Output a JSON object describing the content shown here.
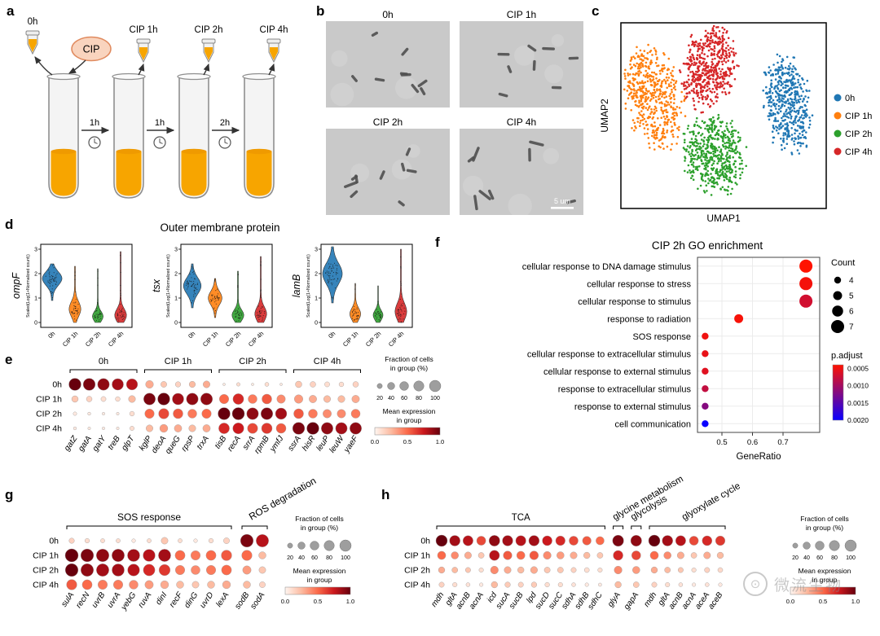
{
  "panel_letters": {
    "a": "a",
    "b": "b",
    "c": "c",
    "d": "d",
    "e": "e",
    "f": "f",
    "g": "g",
    "h": "h"
  },
  "schematic": {
    "sample_labels": [
      "0h",
      "CIP 1h",
      "CIP 2h",
      "CIP 4h"
    ],
    "cip_label": "CIP",
    "interval_labels": [
      "1h",
      "1h",
      "2h"
    ]
  },
  "micrographs": {
    "labels": [
      "0h",
      "CIP 1h",
      "CIP 2h",
      "CIP 4h"
    ],
    "scale_bar": "5 um",
    "counts": [
      9,
      8,
      9,
      8
    ],
    "len": [
      [
        9,
        14
      ],
      [
        10,
        16
      ],
      [
        9,
        18
      ],
      [
        9,
        20
      ]
    ]
  },
  "watermark": {
    "text": "微流生物"
  },
  "chart_data": [
    {
      "id": "umap",
      "type": "scatter",
      "xlabel": "UMAP1",
      "ylabel": "UMAP2",
      "legend": [
        {
          "label": "0h",
          "color": "#2077b4"
        },
        {
          "label": "CIP 1h",
          "color": "#ff7f0e"
        },
        {
          "label": "CIP 2h",
          "color": "#2ca02c"
        },
        {
          "label": "CIP 4h",
          "color": "#d62728"
        }
      ],
      "clusters": [
        {
          "label": "CIP 1h",
          "color": "#ff7f0e",
          "cx": 0.16,
          "cy": 0.4,
          "rx": 0.14,
          "ry": 0.28,
          "rot": -12,
          "n": 520
        },
        {
          "label": "CIP 4h",
          "color": "#d62728",
          "cx": 0.43,
          "cy": 0.24,
          "rx": 0.13,
          "ry": 0.22,
          "rot": 8,
          "n": 520
        },
        {
          "label": "CIP 2h",
          "color": "#2ca02c",
          "cx": 0.45,
          "cy": 0.71,
          "rx": 0.15,
          "ry": 0.21,
          "rot": -8,
          "n": 520
        },
        {
          "label": "0h",
          "color": "#2077b4",
          "cx": 0.81,
          "cy": 0.44,
          "rx": 0.11,
          "ry": 0.26,
          "rot": -6,
          "n": 470
        }
      ]
    },
    {
      "id": "violins",
      "type": "violin",
      "title": "Outer membrane protein",
      "ylabel": "Scaled(Log(1+Normalized count))",
      "yticks": [
        0,
        1,
        2,
        3
      ],
      "categories": [
        "0h",
        "CIP 1h",
        "CIP 2h",
        "CIP 4h"
      ],
      "category_colors": [
        "#2077b4",
        "#ff7f0e",
        "#2ca02c",
        "#d62728"
      ],
      "genes": [
        {
          "name": "ompF",
          "violins": [
            {
              "peak": 1.8,
              "sd": 0.28,
              "min": 0.9,
              "max": 2.4,
              "w": 1.0,
              "dots": 50
            },
            {
              "peak": 0.55,
              "sd": 0.3,
              "min": 0.0,
              "max": 2.3,
              "w": 0.6,
              "dots": 40
            },
            {
              "peak": 0.25,
              "sd": 0.2,
              "min": 0.0,
              "max": 2.2,
              "w": 0.55,
              "dots": 35
            },
            {
              "peak": 0.3,
              "sd": 0.25,
              "min": 0.0,
              "max": 2.9,
              "w": 0.6,
              "dots": 40
            }
          ]
        },
        {
          "name": "tsx",
          "violins": [
            {
              "peak": 1.5,
              "sd": 0.33,
              "min": 0.6,
              "max": 2.4,
              "w": 0.9,
              "dots": 50
            },
            {
              "peak": 1.0,
              "sd": 0.28,
              "min": 0.2,
              "max": 1.8,
              "w": 0.7,
              "dots": 40
            },
            {
              "peak": 0.3,
              "sd": 0.22,
              "min": 0.0,
              "max": 2.1,
              "w": 0.6,
              "dots": 35
            },
            {
              "peak": 0.35,
              "sd": 0.28,
              "min": 0.0,
              "max": 2.7,
              "w": 0.6,
              "dots": 40
            }
          ]
        },
        {
          "name": "lamB",
          "violins": [
            {
              "peak": 2.0,
              "sd": 0.42,
              "min": 0.8,
              "max": 3.1,
              "w": 1.0,
              "dots": 55
            },
            {
              "peak": 0.35,
              "sd": 0.24,
              "min": 0.0,
              "max": 1.6,
              "w": 0.55,
              "dots": 35
            },
            {
              "peak": 0.3,
              "sd": 0.2,
              "min": 0.0,
              "max": 1.5,
              "w": 0.5,
              "dots": 30
            },
            {
              "peak": 0.45,
              "sd": 0.33,
              "min": 0.0,
              "max": 3.0,
              "w": 0.6,
              "dots": 40
            }
          ]
        }
      ]
    },
    {
      "id": "marker_dotplot",
      "type": "dotplot",
      "rows": [
        "0h",
        "CIP 1h",
        "CIP 2h",
        "CIP 4h"
      ],
      "groups": [
        {
          "label": "0h",
          "rotate": false,
          "genes": [
            "gatZ",
            "gatA",
            "gatY",
            "treB",
            "glpT"
          ]
        },
        {
          "label": "CIP 1h",
          "rotate": false,
          "genes": [
            "kglP",
            "deoA",
            "queG",
            "rpsP",
            "trxA"
          ]
        },
        {
          "label": "CIP 2h",
          "rotate": false,
          "genes": [
            "tisB",
            "recA",
            "srrA",
            "rpmB",
            "ymfJ"
          ]
        },
        {
          "label": "CIP 4h",
          "rotate": false,
          "genes": [
            "ssrA",
            "hisR",
            "leuP",
            "leuW",
            "yaeF"
          ]
        }
      ],
      "sizes": [
        [
          92,
          90,
          86,
          82,
          78,
          38,
          22,
          18,
          24,
          30,
          4,
          8,
          4,
          10,
          4,
          26,
          20,
          16,
          14,
          20
        ],
        [
          26,
          20,
          16,
          14,
          30,
          86,
          92,
          82,
          86,
          88,
          55,
          72,
          50,
          60,
          45,
          46,
          36,
          30,
          30,
          36
        ],
        [
          8,
          6,
          5,
          5,
          14,
          55,
          66,
          60,
          50,
          55,
          92,
          94,
          86,
          88,
          80,
          60,
          50,
          45,
          45,
          50
        ],
        [
          6,
          5,
          5,
          5,
          12,
          30,
          40,
          35,
          30,
          35,
          72,
          76,
          65,
          70,
          60,
          90,
          92,
          86,
          84,
          86
        ]
      ],
      "values": [
        [
          1.0,
          0.95,
          0.9,
          0.85,
          0.8,
          0.3,
          0.2,
          0.15,
          0.25,
          0.3,
          0.05,
          0.1,
          0.05,
          0.1,
          0.05,
          0.2,
          0.15,
          0.1,
          0.1,
          0.15
        ],
        [
          0.2,
          0.15,
          0.1,
          0.1,
          0.25,
          0.95,
          1.0,
          0.85,
          0.9,
          0.9,
          0.5,
          0.7,
          0.45,
          0.55,
          0.4,
          0.35,
          0.3,
          0.25,
          0.25,
          0.3
        ],
        [
          0.05,
          0.05,
          0.05,
          0.05,
          0.1,
          0.5,
          0.6,
          0.55,
          0.45,
          0.5,
          1.0,
          1.0,
          0.9,
          0.95,
          0.85,
          0.55,
          0.45,
          0.4,
          0.4,
          0.45
        ],
        [
          0.05,
          0.05,
          0.05,
          0.05,
          0.1,
          0.25,
          0.35,
          0.3,
          0.25,
          0.3,
          0.7,
          0.75,
          0.6,
          0.65,
          0.55,
          0.95,
          1.0,
          0.9,
          0.85,
          0.9
        ]
      ],
      "legend": {
        "fraction_title": [
          "Fraction of cells",
          "in group (%)"
        ],
        "fraction_ticks": [
          20,
          40,
          60,
          80,
          100
        ],
        "expression_title": [
          "Mean expression",
          "in group"
        ],
        "expression_ticks": [
          "0.0",
          "0.5",
          "1.0"
        ]
      }
    },
    {
      "id": "go_enrichment",
      "type": "dot_enrichment",
      "title": "CIP 2h GO enrichment",
      "xlabel": "GeneRatio",
      "xticks": [
        0.5,
        0.6,
        0.7
      ],
      "xlim": [
        0.42,
        0.82
      ],
      "terms": [
        {
          "label": "cellular response to DNA damage stimulus",
          "ratio": 0.775,
          "count": 7,
          "padj": 0.0004
        },
        {
          "label": "cellular response to stress",
          "ratio": 0.775,
          "count": 7,
          "padj": 0.00047
        },
        {
          "label": "cellular response to stimulus",
          "ratio": 0.775,
          "count": 7,
          "padj": 0.0007
        },
        {
          "label": "response to radiation",
          "ratio": 0.555,
          "count": 5,
          "padj": 0.00045
        },
        {
          "label": "SOS response",
          "ratio": 0.445,
          "count": 4,
          "padj": 0.0005
        },
        {
          "label": "cellular response to extracellular stimulus",
          "ratio": 0.445,
          "count": 4,
          "padj": 0.00055
        },
        {
          "label": "cellular response to external stimulus",
          "ratio": 0.445,
          "count": 4,
          "padj": 0.0006
        },
        {
          "label": "response to extracellular stimulus",
          "ratio": 0.445,
          "count": 4,
          "padj": 0.0008
        },
        {
          "label": "response to external stimulus",
          "ratio": 0.445,
          "count": 4,
          "padj": 0.0012
        },
        {
          "label": "cell communication",
          "ratio": 0.445,
          "count": 4,
          "padj": 0.002
        }
      ],
      "legend": {
        "count_title": "Count",
        "count_ticks": [
          4,
          5,
          6,
          7
        ],
        "padj_title": "p.adjust",
        "padj_ticks": [
          "0.0005",
          "0.0010",
          "0.0015",
          "0.0020"
        ],
        "padj_range": [
          0.0004,
          0.002
        ]
      }
    },
    {
      "id": "sos_dotplot",
      "type": "dotplot",
      "rows": [
        "0h",
        "CIP 1h",
        "CIP 2h",
        "CIP 4h"
      ],
      "groups": [
        {
          "label": "SOS response",
          "rotate": false,
          "genes": [
            "sulA",
            "recN",
            "uvrB",
            "uvrA",
            "yebG",
            "ruvA",
            "dinI",
            "recF",
            "dinG",
            "uvrD",
            "lexA"
          ]
        },
        {
          "label": "ROS degradation",
          "rotate": true,
          "genes": [
            "sodB",
            "sodA"
          ]
        }
      ],
      "sizes": [
        [
          16,
          12,
          10,
          10,
          8,
          10,
          26,
          10,
          8,
          12,
          20,
          92,
          88
        ],
        [
          96,
          92,
          90,
          88,
          85,
          82,
          86,
          56,
          50,
          56,
          62,
          60,
          30
        ],
        [
          92,
          90,
          88,
          85,
          80,
          76,
          70,
          50,
          46,
          50,
          56,
          40,
          26
        ],
        [
          60,
          55,
          50,
          50,
          45,
          40,
          36,
          30,
          26,
          30,
          36,
          30,
          20
        ]
      ],
      "values": [
        [
          0.15,
          0.1,
          0.1,
          0.1,
          0.05,
          0.1,
          0.2,
          0.1,
          0.05,
          0.1,
          0.15,
          0.95,
          0.8
        ],
        [
          1.0,
          0.95,
          0.9,
          0.9,
          0.85,
          0.8,
          0.85,
          0.5,
          0.45,
          0.5,
          0.55,
          0.5,
          0.25
        ],
        [
          1.0,
          0.9,
          0.85,
          0.85,
          0.8,
          0.7,
          0.65,
          0.45,
          0.4,
          0.45,
          0.5,
          0.35,
          0.2
        ],
        [
          0.55,
          0.5,
          0.45,
          0.45,
          0.4,
          0.35,
          0.3,
          0.25,
          0.2,
          0.25,
          0.3,
          0.25,
          0.15
        ]
      ],
      "legend": {
        "fraction_title": [
          "Fraction of cells",
          "in group (%)"
        ],
        "fraction_ticks": [
          20,
          40,
          60,
          80,
          100
        ],
        "expression_title": [
          "Mean expression",
          "in group"
        ],
        "expression_ticks": [
          "0.0",
          "0.5",
          "1.0"
        ]
      }
    },
    {
      "id": "tca_dotplot",
      "type": "dotplot",
      "rows": [
        "0h",
        "CIP 1h",
        "CIP 2h",
        "CIP 4h"
      ],
      "groups": [
        {
          "label": "TCA",
          "rotate": false,
          "genes": [
            "mdh",
            "gltA",
            "acnB",
            "acnA",
            "icd",
            "sucA",
            "sucB",
            "lpd",
            "sucD",
            "sucC",
            "sdhA",
            "sdhB",
            "sdhC"
          ]
        },
        {
          "label": "glycine metabolism",
          "rotate": true,
          "genes": [
            "glyA"
          ]
        },
        {
          "label": "glycolysis",
          "rotate": true,
          "genes": [
            "gapA"
          ]
        },
        {
          "label": "glyoxylate cycle",
          "rotate": true,
          "genes": [
            "mdh",
            "gltA",
            "acnB",
            "acnA",
            "aceA",
            "aceB"
          ]
        }
      ],
      "sizes": [
        [
          95,
          82,
          75,
          60,
          85,
          80,
          76,
          80,
          70,
          66,
          60,
          55,
          50,
          90,
          88,
          95,
          82,
          75,
          60,
          70,
          66
        ],
        [
          50,
          40,
          35,
          25,
          75,
          55,
          50,
          56,
          45,
          40,
          35,
          30,
          25,
          70,
          60,
          50,
          40,
          35,
          25,
          35,
          30
        ],
        [
          30,
          25,
          20,
          15,
          45,
          35,
          30,
          36,
          26,
          25,
          20,
          18,
          15,
          45,
          40,
          30,
          25,
          20,
          15,
          20,
          18
        ],
        [
          20,
          15,
          12,
          10,
          30,
          22,
          20,
          22,
          16,
          15,
          12,
          10,
          8,
          30,
          25,
          20,
          15,
          12,
          10,
          12,
          10
        ]
      ],
      "values": [
        [
          1.0,
          0.85,
          0.8,
          0.6,
          0.9,
          0.85,
          0.8,
          0.85,
          0.75,
          0.7,
          0.6,
          0.55,
          0.5,
          0.95,
          0.9,
          1.0,
          0.85,
          0.8,
          0.6,
          0.7,
          0.65
        ],
        [
          0.5,
          0.4,
          0.3,
          0.2,
          0.8,
          0.55,
          0.5,
          0.55,
          0.4,
          0.35,
          0.3,
          0.25,
          0.2,
          0.7,
          0.6,
          0.5,
          0.4,
          0.3,
          0.2,
          0.3,
          0.25
        ],
        [
          0.3,
          0.25,
          0.2,
          0.1,
          0.4,
          0.3,
          0.25,
          0.3,
          0.2,
          0.2,
          0.15,
          0.1,
          0.1,
          0.4,
          0.35,
          0.3,
          0.25,
          0.2,
          0.1,
          0.15,
          0.12
        ],
        [
          0.15,
          0.1,
          0.08,
          0.05,
          0.25,
          0.18,
          0.15,
          0.18,
          0.1,
          0.1,
          0.08,
          0.05,
          0.05,
          0.25,
          0.2,
          0.15,
          0.1,
          0.08,
          0.05,
          0.08,
          0.05
        ]
      ],
      "legend": {
        "fraction_title": [
          "Fraction of cells",
          "in group (%)"
        ],
        "fraction_ticks": [
          20,
          40,
          60,
          80,
          100
        ],
        "expression_title": [
          "Mean expression",
          "in group"
        ],
        "expression_ticks": [
          "0.0",
          "0.5",
          "1.0"
        ]
      }
    }
  ]
}
